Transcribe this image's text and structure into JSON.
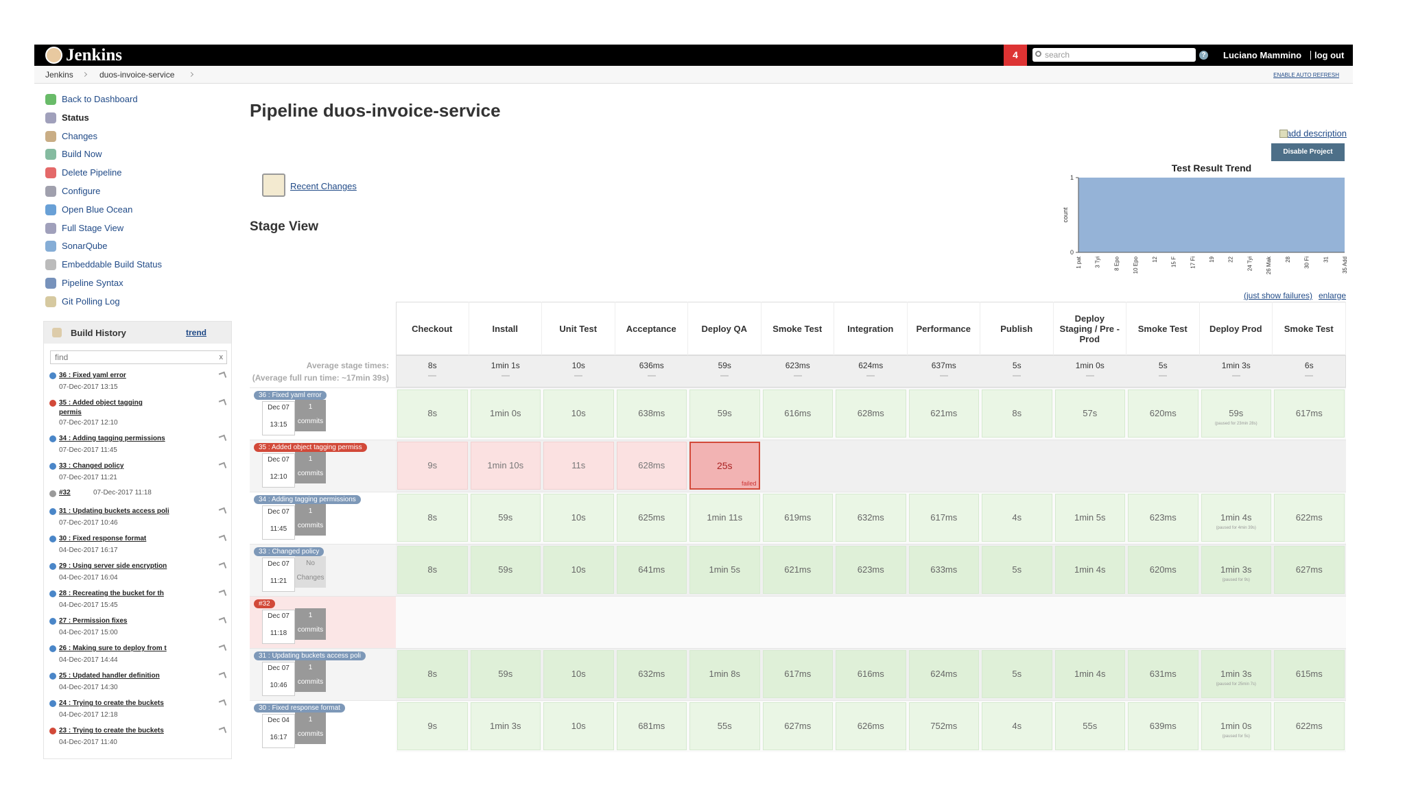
{
  "header": {
    "logo": "Jenkins",
    "badge": "4",
    "search": "search",
    "help": "?",
    "user": "Luciano Mammino",
    "logout": "log out",
    "auto_refresh": "ENABLE AUTO REFRESH"
  },
  "breadcrumb": [
    "Jenkins",
    "duos-invoice-service"
  ],
  "sidebar": {
    "tasks": [
      "Back to Dashboard",
      "Status",
      "Changes",
      "Build Now",
      "Delete Pipeline",
      "Configure",
      "Open Blue Ocean",
      "Full Stage View",
      "SonarQube",
      "Embeddable Build Status",
      "Pipeline Syntax",
      "Git Polling Log"
    ]
  },
  "build_history": {
    "title": "Build History",
    "trend": "trend",
    "find": "find",
    "find_clear": "x",
    "builds": [
      {
        "label": "36 : Fixed yaml error",
        "date": "07-Dec-2017 13:15",
        "status": "success"
      },
      {
        "label": "35 : Added object tagging permis",
        "date": "07-Dec-2017 12:10",
        "status": "failed"
      },
      {
        "label": "34 : Adding tagging permissions",
        "date": "07-Dec-2017 11:45",
        "status": "success"
      },
      {
        "label": "33 : Changed policy",
        "date": "07-Dec-2017 11:21",
        "status": "success"
      },
      {
        "label": "#32",
        "date": "07-Dec-2017 11:18",
        "status": "aborted"
      },
      {
        "label": "31 : Updating buckets access poli",
        "date": "07-Dec-2017 10:46",
        "status": "success"
      },
      {
        "label": "30 : Fixed response format",
        "date": "04-Dec-2017 16:17",
        "status": "success"
      },
      {
        "label": "29 : Using server side encryption",
        "date": "04-Dec-2017 16:04",
        "status": "success"
      },
      {
        "label": "28 : Recreating the bucket for th",
        "date": "04-Dec-2017 15:45",
        "status": "success"
      },
      {
        "label": "27 : Permission fixes",
        "date": "04-Dec-2017 15:00",
        "status": "success"
      },
      {
        "label": "26 : Making sure to deploy from t",
        "date": "04-Dec-2017 14:44",
        "status": "success"
      },
      {
        "label": "25 : Updated handler definition",
        "date": "04-Dec-2017 14:30",
        "status": "success"
      },
      {
        "label": "24 : Trying to create the buckets",
        "date": "04-Dec-2017 12:18",
        "status": "success"
      },
      {
        "label": "23 : Trying to create the buckets",
        "date": "04-Dec-2017 11:40",
        "status": "failed"
      }
    ]
  },
  "main": {
    "title": "Pipeline duos-invoice-service",
    "add_description": "add description",
    "disable": "Disable Project",
    "recent_changes": "Recent Changes",
    "stage_view": "Stage View",
    "just_show_failures": "(just show failures)",
    "enlarge": "enlarge"
  },
  "test_trend": {
    "title": "Test Result Trend",
    "y_label": "count",
    "ylim": [
      0,
      1
    ],
    "yticks": [
      0,
      1
    ],
    "categories": [
      "1 pat",
      "3 Tyi",
      "8 Epo",
      "10 Epo",
      "12",
      "15 F",
      "17 Fi",
      "19",
      "22",
      "24 Tyi",
      "26 Mak",
      "28",
      "30 Fi",
      "31",
      "35 Add"
    ],
    "values": [
      1,
      1,
      1,
      1,
      1,
      1,
      1,
      1,
      1,
      1,
      1,
      1,
      1,
      1,
      1
    ],
    "color": "#95b3d7"
  },
  "stage_view": {
    "stages": [
      "Checkout",
      "Install",
      "Unit Test",
      "Acceptance",
      "Deploy QA",
      "Smoke Test",
      "Integration",
      "Performance",
      "Publish",
      "Deploy Staging / Pre - Prod",
      "Smoke Test",
      "Deploy Prod",
      "Smoke Test"
    ],
    "average_label": "Average stage times:",
    "average_full": "(Average full run time: ~17min 39s)",
    "averages": [
      "8s",
      "1min 1s",
      "10s",
      "636ms",
      "59s",
      "623ms",
      "624ms",
      "637ms",
      "5s",
      "1min 0s",
      "5s",
      "1min 3s",
      "6s"
    ],
    "runs": [
      {
        "badge": "36 : Fixed yaml error",
        "date": "Dec 07",
        "time": "13:15",
        "commits": "1",
        "commits_label": "commits",
        "status": "success",
        "cells": [
          {
            "time": "8s"
          },
          {
            "time": "1min 0s"
          },
          {
            "time": "10s"
          },
          {
            "time": "638ms"
          },
          {
            "time": "59s"
          },
          {
            "time": "616ms"
          },
          {
            "time": "628ms"
          },
          {
            "time": "621ms"
          },
          {
            "time": "8s"
          },
          {
            "time": "57s"
          },
          {
            "time": "620ms"
          },
          {
            "time": "59s",
            "note": "(paused for 23min 28s)"
          },
          {
            "time": "617ms"
          }
        ]
      },
      {
        "badge": "35 : Added object tagging permiss",
        "date": "Dec 07",
        "time": "12:10",
        "commits": "1",
        "commits_label": "commits",
        "status": "failed",
        "cells": [
          {
            "time": "9s"
          },
          {
            "time": "1min 10s"
          },
          {
            "time": "11s"
          },
          {
            "time": "628ms"
          },
          {
            "time": "25s",
            "note": "failed"
          }
        ]
      },
      {
        "badge": "34 : Adding tagging permissions",
        "date": "Dec 07",
        "time": "11:45",
        "commits": "1",
        "commits_label": "commits",
        "status": "success",
        "cells": [
          {
            "time": "8s"
          },
          {
            "time": "59s"
          },
          {
            "time": "10s"
          },
          {
            "time": "625ms"
          },
          {
            "time": "1min 11s"
          },
          {
            "time": "619ms"
          },
          {
            "time": "632ms"
          },
          {
            "time": "617ms"
          },
          {
            "time": "4s"
          },
          {
            "time": "1min 5s"
          },
          {
            "time": "623ms"
          },
          {
            "time": "1min 4s",
            "note": "(paused for 4min 39s)"
          },
          {
            "time": "622ms"
          }
        ]
      },
      {
        "badge": "33 : Changed policy",
        "date": "Dec 07",
        "time": "11:21",
        "commits": "No",
        "commits_label": "Changes",
        "status": "success",
        "cells": [
          {
            "time": "8s"
          },
          {
            "time": "59s"
          },
          {
            "time": "10s"
          },
          {
            "time": "641ms"
          },
          {
            "time": "1min 5s"
          },
          {
            "time": "621ms"
          },
          {
            "time": "623ms"
          },
          {
            "time": "633ms"
          },
          {
            "time": "5s"
          },
          {
            "time": "1min 4s"
          },
          {
            "time": "620ms"
          },
          {
            "time": "1min 3s",
            "note": "(paused for 9s)"
          },
          {
            "time": "627ms"
          }
        ]
      },
      {
        "badge": "#32",
        "date": "Dec 07",
        "time": "11:18",
        "commits": "1",
        "commits_label": "commits",
        "status": "aborted",
        "cells": []
      },
      {
        "badge": "31 : Updating buckets access poli",
        "date": "Dec 07",
        "time": "10:46",
        "commits": "1",
        "commits_label": "commits",
        "status": "success",
        "cells": [
          {
            "time": "8s"
          },
          {
            "time": "59s"
          },
          {
            "time": "10s"
          },
          {
            "time": "632ms"
          },
          {
            "time": "1min 8s"
          },
          {
            "time": "617ms"
          },
          {
            "time": "616ms"
          },
          {
            "time": "624ms"
          },
          {
            "time": "5s"
          },
          {
            "time": "1min 4s"
          },
          {
            "time": "631ms"
          },
          {
            "time": "1min 3s",
            "note": "(paused for 25min 7s)"
          },
          {
            "time": "615ms"
          }
        ]
      },
      {
        "badge": "30 : Fixed response format",
        "date": "Dec 04",
        "time": "16:17",
        "commits": "1",
        "commits_label": "commits",
        "status": "success",
        "cells": [
          {
            "time": "9s"
          },
          {
            "time": "1min 3s"
          },
          {
            "time": "10s"
          },
          {
            "time": "681ms"
          },
          {
            "time": "55s"
          },
          {
            "time": "627ms"
          },
          {
            "time": "626ms"
          },
          {
            "time": "752ms"
          },
          {
            "time": "4s"
          },
          {
            "time": "55s"
          },
          {
            "time": "639ms"
          },
          {
            "time": "1min 0s",
            "note": "(paused for 5s)"
          },
          {
            "time": "622ms"
          }
        ]
      }
    ]
  }
}
